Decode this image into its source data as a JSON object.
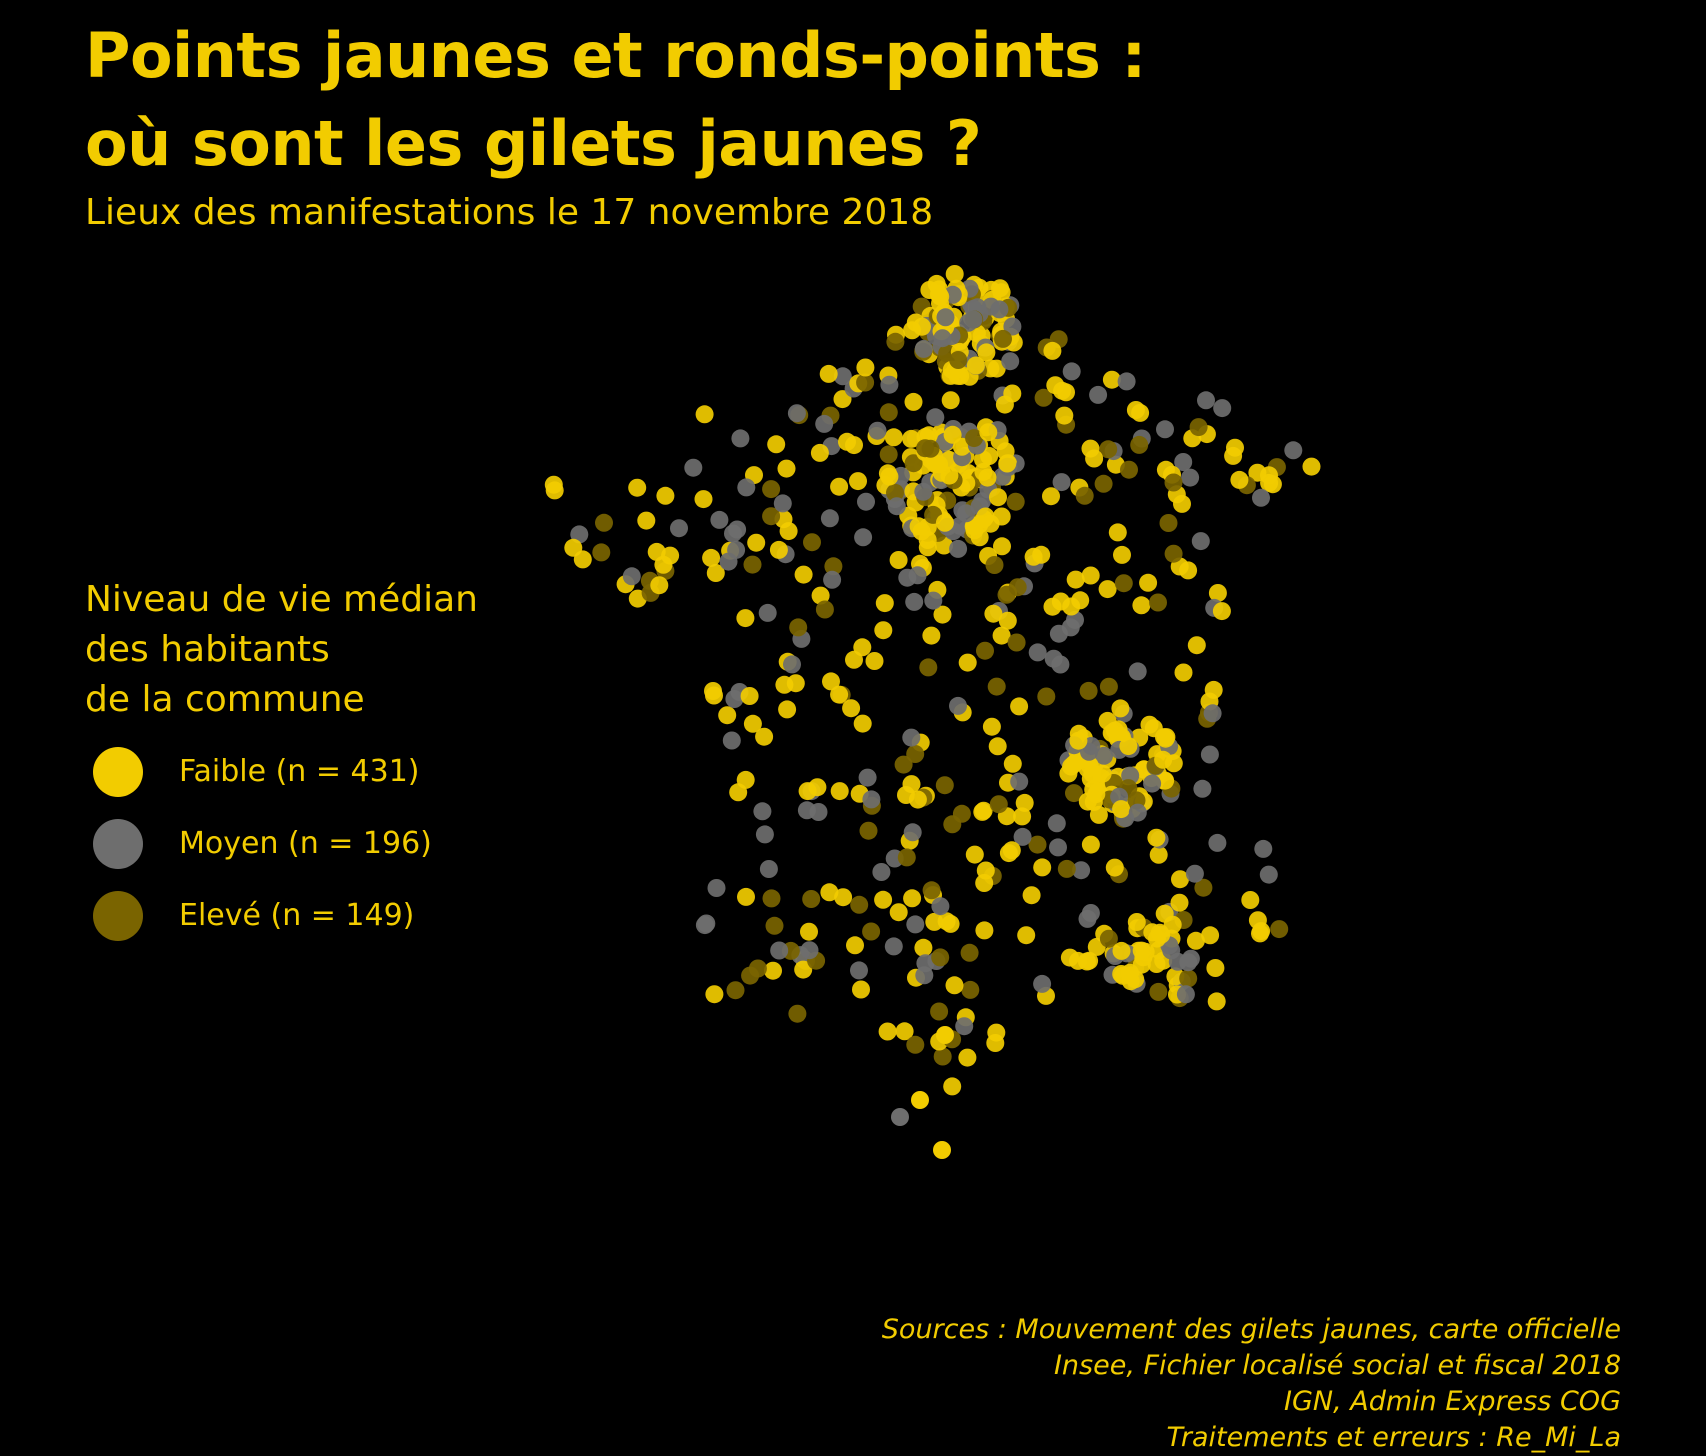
{
  "title": {
    "line1": "Points jaunes et ronds-points :",
    "line2": "où sont les gilets jaunes ?"
  },
  "subtitle": "Lieux des manifestations le 17 novembre 2018",
  "legend": {
    "title_lines": [
      "Niveau de vie médian",
      "des habitants",
      "de la commune"
    ],
    "items": [
      {
        "key": "faible",
        "label": "Faible (n = 431)",
        "color": "#f2cc00"
      },
      {
        "key": "moyen",
        "label": "Moyen (n = 196)",
        "color": "#6e6e6e"
      },
      {
        "key": "eleve",
        "label": "Elevé (n = 149)",
        "color": "#7a6400"
      }
    ]
  },
  "sources": [
    "Sources : Mouvement des gilets jaunes, carte officielle",
    "Insee, Fichier localisé social et fiscal 2018",
    "IGN, Admin Express COG",
    "Traitements et erreurs : Re_Mi_La"
  ],
  "map": {
    "background": "#000000",
    "counts": {
      "faible": 431,
      "moyen": 196,
      "eleve": 149
    }
  }
}
